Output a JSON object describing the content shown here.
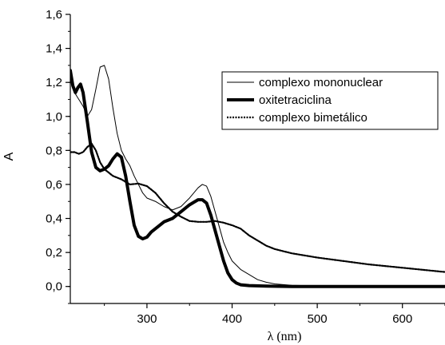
{
  "chart_data": {
    "type": "line",
    "title": "",
    "xlabel": "λ (nm)",
    "ylabel": "A",
    "xlim": [
      210,
      650
    ],
    "ylim": [
      -0.1,
      1.6
    ],
    "x_ticks": [
      300,
      400,
      500,
      600
    ],
    "x_tick_labels": [
      "300",
      "400",
      "500",
      "600"
    ],
    "y_ticks": [
      0.0,
      0.2,
      0.4,
      0.6,
      0.8,
      1.0,
      1.2,
      1.4,
      1.6
    ],
    "y_tick_labels": [
      "0,0",
      "0,2",
      "0,4",
      "0,6",
      "0,8",
      "1,0",
      "1,2",
      "1,4",
      "1,6"
    ],
    "grid": false,
    "legend_position": "top-right",
    "series": [
      {
        "name": "complexo mononuclear",
        "style": "thin-solid",
        "color": "#000000",
        "points": [
          [
            210,
            1.25
          ],
          [
            215,
            1.14
          ],
          [
            220,
            1.1
          ],
          [
            225,
            1.06
          ],
          [
            230,
            1.0
          ],
          [
            235,
            1.04
          ],
          [
            240,
            1.16
          ],
          [
            245,
            1.29
          ],
          [
            250,
            1.3
          ],
          [
            255,
            1.22
          ],
          [
            260,
            1.05
          ],
          [
            265,
            0.9
          ],
          [
            270,
            0.8
          ],
          [
            275,
            0.75
          ],
          [
            280,
            0.71
          ],
          [
            285,
            0.65
          ],
          [
            290,
            0.6
          ],
          [
            295,
            0.55
          ],
          [
            300,
            0.52
          ],
          [
            310,
            0.5
          ],
          [
            320,
            0.47
          ],
          [
            330,
            0.45
          ],
          [
            340,
            0.47
          ],
          [
            350,
            0.52
          ],
          [
            360,
            0.58
          ],
          [
            365,
            0.6
          ],
          [
            370,
            0.59
          ],
          [
            375,
            0.53
          ],
          [
            380,
            0.44
          ],
          [
            385,
            0.35
          ],
          [
            390,
            0.26
          ],
          [
            395,
            0.2
          ],
          [
            400,
            0.15
          ],
          [
            410,
            0.1
          ],
          [
            420,
            0.07
          ],
          [
            430,
            0.04
          ],
          [
            440,
            0.025
          ],
          [
            450,
            0.015
          ],
          [
            470,
            0.007
          ],
          [
            500,
            0.003
          ],
          [
            550,
            0.0
          ],
          [
            600,
            0.0
          ],
          [
            650,
            0.0
          ]
        ]
      },
      {
        "name": "oxitetraciclina",
        "style": "thick-solid",
        "color": "#000000",
        "points": [
          [
            210,
            1.27
          ],
          [
            213,
            1.18
          ],
          [
            216,
            1.14
          ],
          [
            219,
            1.17
          ],
          [
            222,
            1.19
          ],
          [
            225,
            1.14
          ],
          [
            230,
            0.97
          ],
          [
            235,
            0.79
          ],
          [
            240,
            0.7
          ],
          [
            245,
            0.68
          ],
          [
            250,
            0.69
          ],
          [
            255,
            0.71
          ],
          [
            260,
            0.75
          ],
          [
            265,
            0.78
          ],
          [
            270,
            0.76
          ],
          [
            275,
            0.65
          ],
          [
            280,
            0.5
          ],
          [
            285,
            0.36
          ],
          [
            290,
            0.295
          ],
          [
            295,
            0.28
          ],
          [
            300,
            0.29
          ],
          [
            305,
            0.32
          ],
          [
            310,
            0.34
          ],
          [
            315,
            0.36
          ],
          [
            320,
            0.38
          ],
          [
            330,
            0.4
          ],
          [
            340,
            0.44
          ],
          [
            350,
            0.48
          ],
          [
            360,
            0.51
          ],
          [
            365,
            0.51
          ],
          [
            370,
            0.49
          ],
          [
            375,
            0.42
          ],
          [
            380,
            0.33
          ],
          [
            385,
            0.24
          ],
          [
            390,
            0.15
          ],
          [
            395,
            0.08
          ],
          [
            400,
            0.04
          ],
          [
            405,
            0.02
          ],
          [
            410,
            0.01
          ],
          [
            420,
            0.005
          ],
          [
            440,
            0.002
          ],
          [
            470,
            0.0
          ],
          [
            500,
            0.0
          ],
          [
            550,
            0.0
          ],
          [
            600,
            0.0
          ],
          [
            650,
            0.0
          ]
        ]
      },
      {
        "name": "complexo bimetálico",
        "style": "dotted",
        "color": "#000000",
        "points": [
          [
            210,
            0.79
          ],
          [
            215,
            0.79
          ],
          [
            220,
            0.78
          ],
          [
            225,
            0.79
          ],
          [
            230,
            0.82
          ],
          [
            235,
            0.84
          ],
          [
            240,
            0.8
          ],
          [
            245,
            0.73
          ],
          [
            250,
            0.69
          ],
          [
            255,
            0.67
          ],
          [
            260,
            0.65
          ],
          [
            270,
            0.63
          ],
          [
            280,
            0.6
          ],
          [
            290,
            0.605
          ],
          [
            300,
            0.59
          ],
          [
            310,
            0.55
          ],
          [
            320,
            0.49
          ],
          [
            330,
            0.44
          ],
          [
            340,
            0.41
          ],
          [
            350,
            0.385
          ],
          [
            360,
            0.38
          ],
          [
            370,
            0.38
          ],
          [
            380,
            0.385
          ],
          [
            390,
            0.375
          ],
          [
            400,
            0.36
          ],
          [
            410,
            0.34
          ],
          [
            420,
            0.3
          ],
          [
            430,
            0.27
          ],
          [
            440,
            0.24
          ],
          [
            450,
            0.22
          ],
          [
            470,
            0.195
          ],
          [
            500,
            0.17
          ],
          [
            530,
            0.15
          ],
          [
            560,
            0.13
          ],
          [
            600,
            0.11
          ],
          [
            650,
            0.085
          ]
        ]
      }
    ]
  }
}
